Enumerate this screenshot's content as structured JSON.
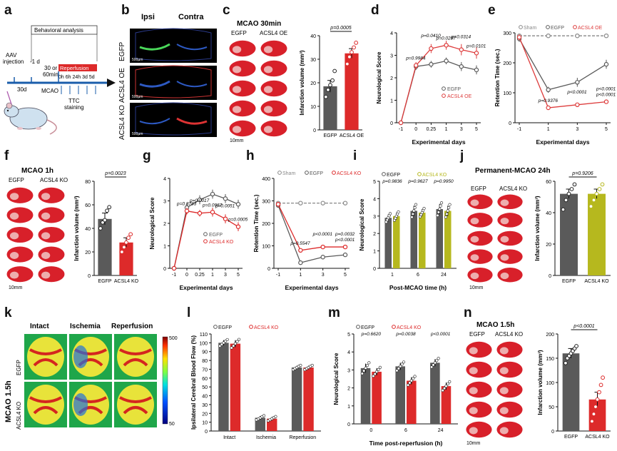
{
  "panel_letters": [
    "a",
    "b",
    "c",
    "d",
    "e",
    "f",
    "g",
    "h",
    "i",
    "j",
    "k",
    "l",
    "m",
    "n"
  ],
  "colors": {
    "egfp": "#5a5a5a",
    "ko": "#dd2a2a",
    "oe": "#dd3b3b",
    "sham": "#888888",
    "yellowko": "#b6b81e",
    "brain": "#d8202a"
  },
  "panel_a": {
    "behavioral": "Behavioral analysis",
    "aav": "AAV",
    "injection": "injection",
    "minus1d": "-1 d",
    "d30": "30d",
    "or30": "30 or",
    "min60": "60min",
    "reperfusion": "Reperfusion",
    "hours": "0h 6h 24h 3d 5d",
    "mcao": "MCAO",
    "ttc": "TTC",
    "staining": "staining"
  },
  "panel_b": {
    "ipsi": "Ipsi",
    "contra": "Contra",
    "rows": [
      "EGFP",
      "ACSL4 OE",
      "ACSL4 KO"
    ],
    "scale": "500µm"
  },
  "panel_c": {
    "title": "MCAO 30min",
    "g1": "EGFP",
    "g2": "ACSL4 OE",
    "scale": "10mm"
  },
  "panel_f": {
    "title": "MCAO 1h",
    "g1": "EGFP",
    "g2": "ACSL4 KO",
    "scale": "10mm"
  },
  "panel_j": {
    "title": "Permanent-MCAO 24h",
    "g1": "EGFP",
    "g2": "ACSL4 KO",
    "scale": "10mm"
  },
  "panel_k": {
    "cols": [
      "Intact",
      "Ischemia",
      "Reperfusion"
    ],
    "side": "MCAO 1.5h",
    "rows": [
      "EGFP",
      "ACSL4 KO"
    ],
    "cb_max": "500",
    "cb_min": "50"
  },
  "panel_n": {
    "title": "MCAO 1.5h",
    "g1": "EGFP",
    "g2": "ACSL4 KO",
    "scale": "10mm"
  },
  "chart_data": [
    {
      "panel": "c",
      "type": "bar",
      "categories": [
        "EGFP",
        "ACSL4 OE"
      ],
      "values": [
        18.5,
        32.5
      ],
      "errors": [
        2.5,
        2.0
      ],
      "points": [
        [
          14,
          17,
          19,
          21,
          25
        ],
        [
          28,
          31,
          33,
          35,
          37
        ]
      ],
      "ylabel": "Infarction volume (mm³)",
      "ylim": [
        0,
        40
      ],
      "yticks": [
        0,
        10,
        20,
        30,
        40
      ],
      "annotations": [
        "p=0.0005"
      ],
      "colors": [
        "#5a5a5a",
        "#dd2a2a"
      ]
    },
    {
      "panel": "d",
      "type": "line",
      "x": [
        "-1",
        "0",
        "0.25",
        "1",
        "3",
        "5"
      ],
      "xlabel": "Experimental days",
      "ylabel": "Neurological Score",
      "ylim": [
        0,
        4
      ],
      "yticks": [
        0,
        1,
        2,
        3,
        4
      ],
      "series": [
        {
          "name": "EGFP",
          "values": [
            0,
            2.5,
            2.6,
            2.75,
            2.5,
            2.35
          ],
          "errors": [
            0,
            0.15,
            0.15,
            0.15,
            0.2,
            0.2
          ]
        },
        {
          "name": "ACSL4 OE",
          "values": [
            0,
            2.55,
            3.3,
            3.45,
            3.25,
            3.1
          ],
          "errors": [
            0,
            0.15,
            0.2,
            0.2,
            0.25,
            0.25
          ]
        }
      ],
      "annotations": [
        "p=0.9984",
        "p=0.0410",
        "p=0.0287",
        "p=0.0314",
        "p=0.0101"
      ]
    },
    {
      "panel": "e",
      "type": "line",
      "x": [
        "-1",
        "1",
        "3",
        "5"
      ],
      "xlabel": "Experimental days",
      "ylabel": "Retention Time (sec.)",
      "ylim": [
        0,
        300
      ],
      "yticks": [
        0,
        100,
        200,
        300
      ],
      "series": [
        {
          "name": "Sham",
          "values": [
            290,
            290,
            290,
            290
          ],
          "errors": [
            5,
            5,
            5,
            5
          ]
        },
        {
          "name": "EGFP",
          "values": [
            280,
            110,
            135,
            195
          ],
          "errors": [
            10,
            10,
            15,
            15
          ]
        },
        {
          "name": "ACSL4 OE",
          "values": [
            285,
            50,
            60,
            70
          ],
          "errors": [
            10,
            5,
            5,
            5
          ]
        }
      ],
      "annotations": [
        "p=0.9376",
        "p<0.0001",
        "p<0.0001",
        "p<0.0001"
      ]
    },
    {
      "panel": "f",
      "type": "bar",
      "categories": [
        "EGFP",
        "ACSL4 KO"
      ],
      "values": [
        48,
        28
      ],
      "errors": [
        5,
        4
      ],
      "points": [
        [
          40,
          45,
          47,
          55,
          58
        ],
        [
          20,
          24,
          28,
          32,
          35
        ]
      ],
      "ylabel": "Infarction volume (mm³)",
      "ylim": [
        0,
        80
      ],
      "yticks": [
        0,
        20,
        40,
        60,
        80
      ],
      "annotations": [
        "p=0.0023"
      ],
      "colors": [
        "#5a5a5a",
        "#dd2a2a"
      ]
    },
    {
      "panel": "g",
      "type": "line",
      "x": [
        "-1",
        "0",
        "0.25",
        "1",
        "3",
        "5"
      ],
      "xlabel": "Experimental days",
      "ylabel": "Neurological Score",
      "ylim": [
        0,
        4
      ],
      "yticks": [
        0,
        1,
        2,
        3,
        4
      ],
      "series": [
        {
          "name": "EGFP",
          "values": [
            0,
            2.7,
            3.05,
            3.3,
            3.1,
            2.85
          ],
          "errors": [
            0,
            0.2,
            0.2,
            0.2,
            0.2,
            0.2
          ]
        },
        {
          "name": "ACSL4 KO",
          "values": [
            0,
            2.55,
            2.45,
            2.5,
            2.2,
            1.85
          ],
          "errors": [
            0,
            0.15,
            0.15,
            0.2,
            0.2,
            0.2
          ]
        }
      ],
      "annotations": [
        "p=0.8783",
        "p=0.0017",
        "p=0.0967",
        "p=0.0051",
        "p=0.0005"
      ]
    },
    {
      "panel": "h",
      "type": "line",
      "x": [
        "-1",
        "1",
        "3",
        "5"
      ],
      "xlabel": "Experimental days",
      "ylabel": "Retention Time (sec.)",
      "ylim": [
        0,
        400
      ],
      "yticks": [
        0,
        100,
        200,
        300,
        400
      ],
      "series": [
        {
          "name": "Sham",
          "values": [
            290,
            290,
            290,
            290
          ],
          "errors": [
            5,
            5,
            5,
            5
          ]
        },
        {
          "name": "EGFP",
          "values": [
            280,
            25,
            50,
            60
          ],
          "errors": [
            10,
            5,
            5,
            5
          ]
        },
        {
          "name": "ACSL4 KO",
          "values": [
            285,
            80,
            95,
            95
          ],
          "errors": [
            10,
            8,
            8,
            8
          ]
        }
      ],
      "annotations": [
        "p=0.5547",
        "p<0.0001",
        "p<0.0001",
        "p=0.0032"
      ]
    },
    {
      "panel": "i",
      "type": "bar",
      "categories": [
        "1",
        "6",
        "24"
      ],
      "xlabel": "Post-MCAO time (h)",
      "ylabel": "Neurological Score",
      "ylim": [
        0,
        5
      ],
      "yticks": [
        0,
        1,
        2,
        3,
        4,
        5
      ],
      "series": [
        {
          "name": "EGFP",
          "values": [
            2.9,
            3.3,
            3.4
          ],
          "errors": [
            0.2,
            0.3,
            0.3
          ]
        },
        {
          "name": "ACSL4 KO",
          "values": [
            3.0,
            3.2,
            3.3
          ],
          "errors": [
            0.2,
            0.2,
            0.3
          ]
        }
      ],
      "annotations": [
        "p=0.9836",
        "p=0.9627",
        "p=0.9950"
      ]
    },
    {
      "panel": "j",
      "type": "bar",
      "categories": [
        "EGFP",
        "ACSL4 KO"
      ],
      "values": [
        52,
        52
      ],
      "errors": [
        3,
        3
      ],
      "points": [
        [
          42,
          48,
          52,
          55,
          58
        ],
        [
          44,
          48,
          52,
          55,
          58
        ]
      ],
      "ylabel": "Infarction volume (mm³)",
      "ylim": [
        0,
        60
      ],
      "yticks": [
        0,
        20,
        40,
        60
      ],
      "annotations": [
        "p=0.9206"
      ],
      "colors": [
        "#5a5a5a",
        "#b6b81e"
      ]
    },
    {
      "panel": "l",
      "type": "bar",
      "categories": [
        "Intact",
        "Ischemia",
        "Reperfusion"
      ],
      "ylabel": "Ipsilateral Cerebral Blood Flow (%)",
      "ylim": [
        0,
        110
      ],
      "yticks": [
        0,
        10,
        20,
        30,
        40,
        50,
        60,
        70,
        80,
        90,
        100,
        110
      ],
      "series": [
        {
          "name": "EGFP",
          "values": [
            100,
            15,
            72
          ],
          "errors": [
            3,
            2,
            2
          ]
        },
        {
          "name": "ACSL4 KO",
          "values": [
            99,
            14,
            72
          ],
          "errors": [
            4,
            2,
            2
          ]
        }
      ]
    },
    {
      "panel": "m",
      "type": "bar",
      "categories": [
        "0",
        "6",
        "24"
      ],
      "xlabel": "Time post-reperfusion (h)",
      "ylabel": "Neurological Score",
      "ylim": [
        0,
        5
      ],
      "yticks": [
        0,
        1,
        2,
        3,
        4,
        5
      ],
      "series": [
        {
          "name": "EGFP",
          "values": [
            3.1,
            3.2,
            3.4
          ],
          "errors": [
            0.25,
            0.2,
            0.2
          ]
        },
        {
          "name": "ACSL4 KO",
          "values": [
            2.9,
            2.4,
            2.1
          ],
          "errors": [
            0.2,
            0.2,
            0.2
          ]
        }
      ],
      "annotations": [
        "p=0.6620",
        "p=0.0038",
        "p<0.0001"
      ]
    },
    {
      "panel": "n",
      "type": "bar",
      "categories": [
        "EGFP",
        "ACSL4 KO"
      ],
      "values": [
        160,
        65
      ],
      "errors": [
        10,
        15
      ],
      "points": [
        [
          140,
          150,
          155,
          160,
          165,
          170,
          175
        ],
        [
          20,
          35,
          50,
          65,
          80,
          95,
          110
        ]
      ],
      "ylabel": "Infarction volume (mm³)",
      "ylim": [
        0,
        200
      ],
      "yticks": [
        0,
        50,
        100,
        150,
        200
      ],
      "annotations": [
        "p<0.0001"
      ],
      "colors": [
        "#5a5a5a",
        "#dd2a2a"
      ]
    }
  ]
}
